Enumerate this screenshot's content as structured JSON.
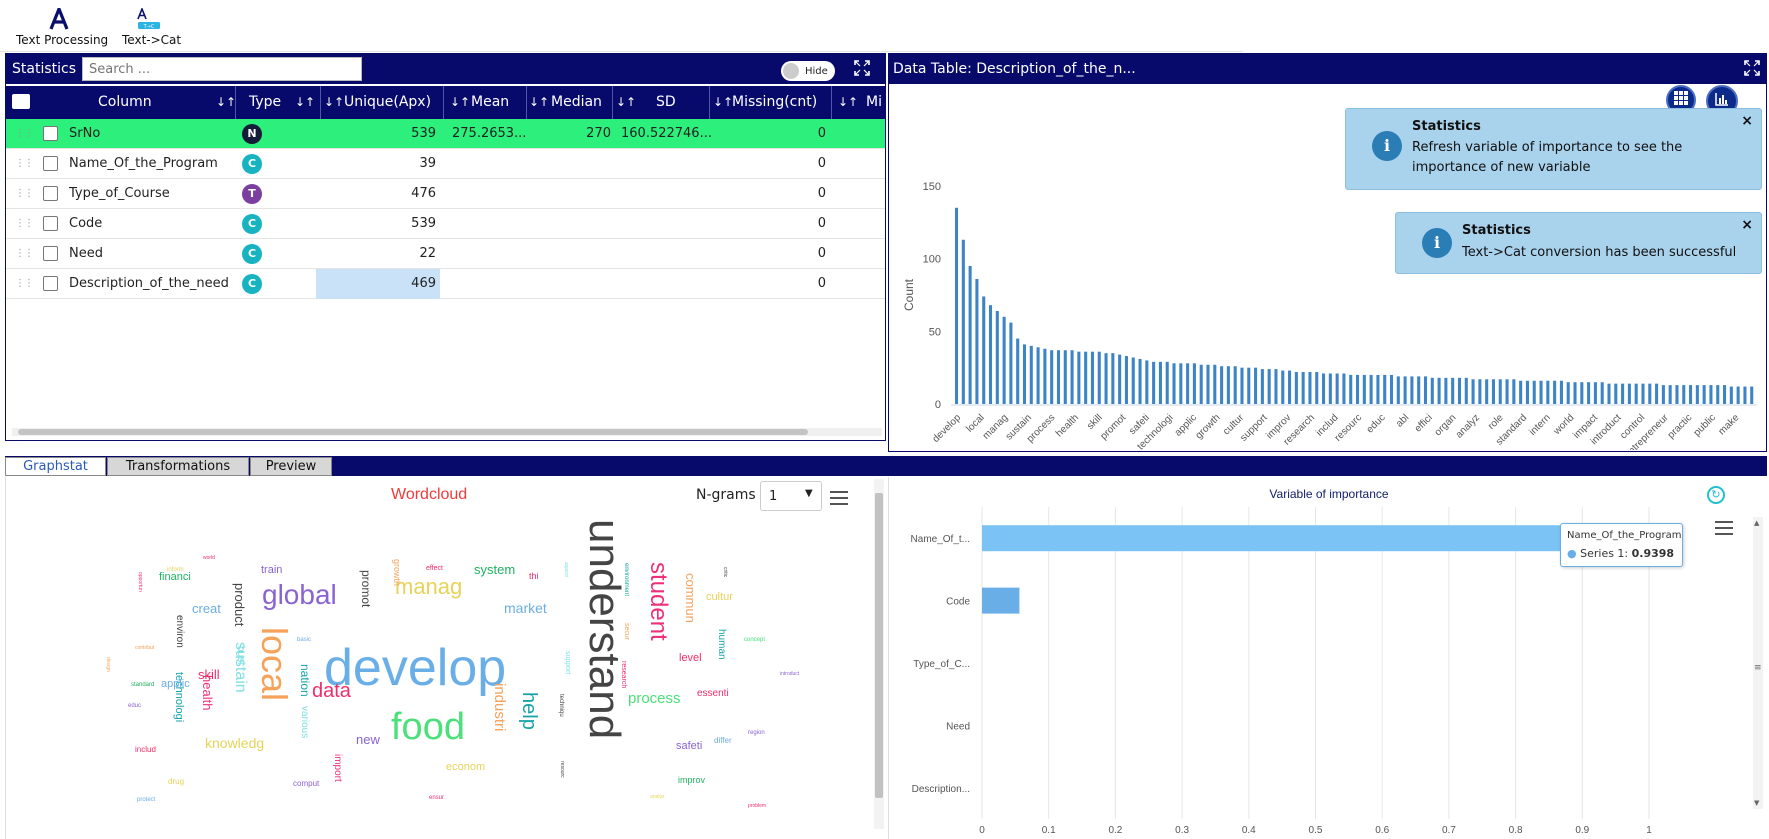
{
  "toolbar": {
    "tools": [
      {
        "label": "Text Processing",
        "icon": "letter-a-icon"
      },
      {
        "label": "Text->Cat",
        "icon": "text-to-category-icon"
      }
    ]
  },
  "stats_panel": {
    "title": "Statistics",
    "search_placeholder": "Search ...",
    "toggle_label": "Hide",
    "columns": [
      "Column",
      "Type",
      "Unique(Apx)",
      "Mean",
      "Median",
      "SD",
      "Missing(cnt)",
      "Mi"
    ],
    "rows": [
      {
        "name": "SrNo",
        "type": "N",
        "type_color": "#141c3a",
        "unique": "539",
        "mean": "275.2653...",
        "median": "270",
        "sd": "160.522746...",
        "missing": "0"
      },
      {
        "name": "Name_Of_the_Program",
        "type": "C",
        "type_color": "#17b3c1",
        "unique": "39",
        "mean": "",
        "median": "",
        "sd": "",
        "missing": "0"
      },
      {
        "name": "Type_of_Course",
        "type": "T",
        "type_color": "#7b3fa0",
        "unique": "476",
        "mean": "",
        "median": "",
        "sd": "",
        "missing": "0"
      },
      {
        "name": "Code",
        "type": "C",
        "type_color": "#17b3c1",
        "unique": "539",
        "mean": "",
        "median": "",
        "sd": "",
        "missing": "0"
      },
      {
        "name": "Need",
        "type": "C",
        "type_color": "#17b3c1",
        "unique": "22",
        "mean": "",
        "median": "",
        "sd": "",
        "missing": "0"
      },
      {
        "name": "Description_of_the_need",
        "type": "C",
        "type_color": "#17b3c1",
        "unique": "469",
        "mean": "",
        "median": "",
        "sd": "",
        "missing": "0"
      }
    ]
  },
  "data_table": {
    "title": "Data Table: Description_of_the_n...",
    "toasts": [
      {
        "title": "Statistics",
        "message": "Refresh variable of importance to see the importance of new variable"
      },
      {
        "title": "Statistics",
        "message": "Text->Cat conversion has been successful"
      }
    ]
  },
  "tabs": [
    "Graphstat",
    "Transformations",
    "Preview"
  ],
  "wordcloud": {
    "title": "Wordcloud",
    "ngram_label": "N-grams",
    "ngram_value": "1",
    "words": [
      {
        "t": "develop",
        "s": 52,
        "c": "#6aaee8",
        "r": 0
      },
      {
        "t": "understand",
        "s": 44,
        "c": "#444444",
        "r": 90
      },
      {
        "t": "food",
        "s": 38,
        "c": "#4be07a",
        "r": 0
      },
      {
        "t": "local",
        "s": 36,
        "c": "#f5a25a",
        "r": 90
      },
      {
        "t": "global",
        "s": 28,
        "c": "#8a63d2",
        "r": 0
      },
      {
        "t": "student",
        "s": 24,
        "c": "#ee2f7a",
        "r": 90
      },
      {
        "t": "manag",
        "s": 22,
        "c": "#e6d35a",
        "r": 0
      },
      {
        "t": "data",
        "s": 20,
        "c": "#ee2f6a",
        "r": 0
      },
      {
        "t": "help",
        "s": 20,
        "c": "#16a3a8",
        "r": 90
      },
      {
        "t": "sustain",
        "s": 16,
        "c": "#7fe0e5",
        "r": 90
      },
      {
        "t": "process",
        "s": 15,
        "c": "#4be07a",
        "r": 0
      },
      {
        "t": "industri",
        "s": 15,
        "c": "#f5a25a",
        "r": 90
      },
      {
        "t": "knowledg",
        "s": 14,
        "c": "#e6d35a",
        "r": 0
      },
      {
        "t": "market",
        "s": 14,
        "c": "#6aaee8",
        "r": 0
      },
      {
        "t": "system",
        "s": 13,
        "c": "#1fb35f",
        "r": 0
      },
      {
        "t": "health",
        "s": 13,
        "c": "#ee2f7a",
        "r": 90
      },
      {
        "t": "product",
        "s": 13,
        "c": "#444444",
        "r": 90
      },
      {
        "t": "commun",
        "s": 13,
        "c": "#f5a25a",
        "r": 90
      },
      {
        "t": "nation",
        "s": 12,
        "c": "#16a3a8",
        "r": 90
      },
      {
        "t": "new",
        "s": 13,
        "c": "#8a63d2",
        "r": 0
      },
      {
        "t": "creat",
        "s": 13,
        "c": "#6aaee8",
        "r": 0
      },
      {
        "t": "promot",
        "s": 12,
        "c": "#444444",
        "r": 90
      },
      {
        "t": "skill",
        "s": 13,
        "c": "#ee2f6a",
        "r": 0
      },
      {
        "t": "technologi",
        "s": 11,
        "c": "#16a3a8",
        "r": 90
      },
      {
        "t": "financi",
        "s": 11,
        "c": "#1fb35f",
        "r": 0
      },
      {
        "t": "train",
        "s": 11,
        "c": "#8a63d2",
        "r": 0
      },
      {
        "t": "human",
        "s": 10,
        "c": "#16a3a8",
        "r": 90
      },
      {
        "t": "level",
        "s": 11,
        "c": "#ee2f6a",
        "r": 0
      },
      {
        "t": "essenti",
        "s": 10,
        "c": "#ee2f6a",
        "r": 0
      },
      {
        "t": "cultur",
        "s": 11,
        "c": "#e6d35a",
        "r": 0
      },
      {
        "t": "safeti",
        "s": 11,
        "c": "#8a63d2",
        "r": 0
      },
      {
        "t": "econom",
        "s": 11,
        "c": "#e6d35a",
        "r": 0
      },
      {
        "t": "applic",
        "s": 11,
        "c": "#6aaee8",
        "r": 0
      },
      {
        "t": "import",
        "s": 10,
        "c": "#ee2f7a",
        "r": 90
      },
      {
        "t": "environ",
        "s": 10,
        "c": "#444444",
        "r": 90
      },
      {
        "t": "various",
        "s": 10,
        "c": "#7fe0e5",
        "r": 90
      },
      {
        "t": "growth",
        "s": 9,
        "c": "#f5a25a",
        "r": 90
      },
      {
        "t": "improv",
        "s": 9,
        "c": "#1fb35f",
        "r": 0
      },
      {
        "t": "differ",
        "s": 8,
        "c": "#6aaee8",
        "r": 0
      },
      {
        "t": "comput",
        "s": 8,
        "c": "#8a63d2",
        "r": 0
      },
      {
        "t": "drug",
        "s": 8,
        "c": "#e6d35a",
        "r": 0
      },
      {
        "t": "includ",
        "s": 8,
        "c": "#ee2f6a",
        "r": 0
      },
      {
        "t": "research",
        "s": 7,
        "c": "#ee2f7a",
        "r": 90
      },
      {
        "t": "busi",
        "s": 10,
        "c": "#7fe0e5",
        "r": 90
      },
      {
        "t": "thi",
        "s": 9,
        "c": "#ee2f6a",
        "r": 0
      },
      {
        "t": "effect",
        "s": 7,
        "c": "#ee2f6a",
        "r": 0
      },
      {
        "t": "support",
        "s": 7,
        "c": "#7fe0e5",
        "r": 90
      },
      {
        "t": "secur",
        "s": 7,
        "c": "#f5a25a",
        "r": 90
      },
      {
        "t": "environment",
        "s": 6,
        "c": "#16a3a8",
        "r": 90
      },
      {
        "t": "techniqu",
        "s": 6,
        "c": "#444444",
        "r": 90
      },
      {
        "t": "concept",
        "s": 6,
        "c": "#4be07a",
        "r": 0
      },
      {
        "t": "region",
        "s": 6,
        "c": "#8a63d2",
        "r": 0
      },
      {
        "t": "protect",
        "s": 6,
        "c": "#6aaee8",
        "r": 0
      },
      {
        "t": "ensur",
        "s": 6,
        "c": "#ee2f6a",
        "r": 0
      },
      {
        "t": "standard",
        "s": 6,
        "c": "#1fb35f",
        "r": 0
      },
      {
        "t": "inform",
        "s": 6,
        "c": "#e6d35a",
        "r": 0
      },
      {
        "t": "educ",
        "s": 6,
        "c": "#8a63d2",
        "r": 0
      },
      {
        "t": "basic",
        "s": 6,
        "c": "#6aaee8",
        "r": 0
      },
      {
        "t": "problem",
        "s": 5,
        "c": "#ee2f6a",
        "r": 0
      },
      {
        "t": "analyz",
        "s": 5,
        "c": "#e6d35a",
        "r": 0
      },
      {
        "t": "contribut",
        "s": 5,
        "c": "#f5a25a",
        "r": 0
      },
      {
        "t": "opportun",
        "s": 5,
        "c": "#ee2f7a",
        "r": 90
      },
      {
        "t": "design",
        "s": 5,
        "c": "#f5a25a",
        "r": 90
      },
      {
        "t": "critic",
        "s": 5,
        "c": "#444444",
        "r": 90
      },
      {
        "t": "aspect",
        "s": 5,
        "c": "#7fe0e5",
        "r": 90
      },
      {
        "t": "resourc",
        "s": 5,
        "c": "#444444",
        "r": 90
      },
      {
        "t": "world",
        "s": 5,
        "c": "#ee2f6a",
        "r": 0
      },
      {
        "t": "introduct",
        "s": 5,
        "c": "#8a63d2",
        "r": 0
      }
    ]
  },
  "var_importance": {
    "title": "Variable of importance",
    "tooltip_name": "Name_Of_the_Program",
    "tooltip_series": "Series 1:",
    "tooltip_value": "0.9398",
    "chart_data": {
      "type": "bar",
      "orientation": "horizontal",
      "title": "Variable of importance",
      "categories": [
        "Name_Of_t...",
        "Code",
        "Type_of_C...",
        "Need",
        "Description..."
      ],
      "series": [
        {
          "name": "Series 1",
          "values": [
            0.9398,
            0.056,
            0,
            0,
            0
          ]
        }
      ],
      "xlim": [
        0,
        1
      ],
      "xticks": [
        "0",
        "0.1",
        "0.2",
        "0.3",
        "0.4",
        "0.5",
        "0.6",
        "0.7",
        "0.8",
        "0.9",
        "1"
      ],
      "bar_color": "#7cc3f5",
      "highlight_color": "#6aaee8",
      "grid": true
    }
  },
  "count_chart": {
    "chart_data": {
      "type": "bar",
      "ylabel": "Count",
      "ylim": [
        0,
        150
      ],
      "yticks": [
        "0",
        "50",
        "100",
        "150"
      ],
      "xtick_labels": [
        "develop",
        "local",
        "manag",
        "sustain",
        "process",
        "health",
        "skill",
        "promot",
        "safeti",
        "technologi",
        "applic",
        "growth",
        "cultur",
        "support",
        "improv",
        "research",
        "includ",
        "resourc",
        "educ",
        "abl",
        "effici",
        "organ",
        "analyz",
        "role",
        "standard",
        "intern",
        "world",
        "impact",
        "introduct",
        "control",
        "entrepreneur",
        "practic",
        "public",
        "make"
      ],
      "values": [
        135,
        113,
        95,
        86,
        74,
        68,
        64,
        60,
        56,
        45,
        41,
        40,
        39,
        38,
        37,
        37,
        37,
        37,
        36,
        36,
        36,
        36,
        35,
        35,
        34,
        33,
        32,
        31,
        30,
        29,
        29,
        29,
        28,
        28,
        28,
        28,
        27,
        27,
        27,
        26,
        26,
        26,
        25,
        25,
        25,
        24,
        24,
        24,
        23,
        23,
        22,
        22,
        22,
        22,
        21,
        21,
        21,
        21,
        20,
        20,
        20,
        20,
        20,
        20,
        20,
        19,
        19,
        19,
        19,
        19,
        18,
        18,
        18,
        18,
        18,
        18,
        17,
        17,
        17,
        17,
        17,
        17,
        17,
        16,
        16,
        16,
        16,
        16,
        16,
        16,
        15,
        15,
        15,
        15,
        15,
        15,
        14,
        14,
        14,
        14,
        14,
        14,
        14,
        14,
        13,
        13,
        13,
        13,
        13,
        13,
        13,
        13,
        13,
        13,
        12,
        12,
        12,
        12
      ],
      "color": "#3c84c6"
    }
  }
}
